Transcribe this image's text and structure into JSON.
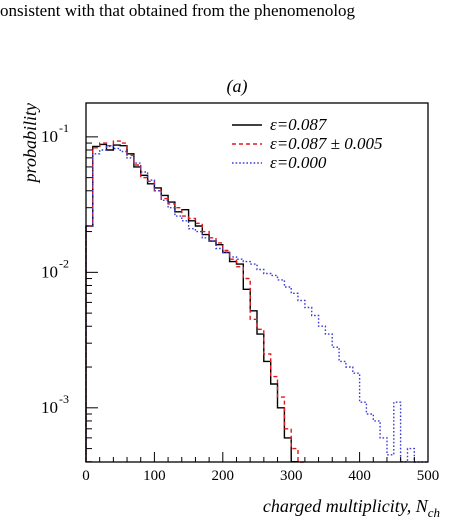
{
  "header_text": "onsistent with that obtained from the phenomenolog",
  "chart_data": {
    "type": "line",
    "drawstyle": "step",
    "panel_label": "(a)",
    "xlabel": "charged multiplicity, N",
    "xlabel_sub": "ch",
    "ylabel": "probability",
    "xlim": [
      0,
      500
    ],
    "ylim_log10": [
      -3.4,
      -0.75
    ],
    "y_scale": "log",
    "grid": false,
    "legend_position": "top-right",
    "x_ticks": [
      0,
      100,
      200,
      300,
      400,
      500
    ],
    "x_tick_labels": [
      "0",
      "100",
      "200",
      "300",
      "400",
      "500"
    ],
    "y_ticks": [
      {
        "value": 0.1,
        "base": "10",
        "exp": "-1"
      },
      {
        "value": 0.01,
        "base": "10",
        "exp": "-2"
      },
      {
        "value": 0.001,
        "base": "10",
        "exp": "-3"
      }
    ],
    "bin_width": 10,
    "series": [
      {
        "name": "ε=0.087",
        "color": "#000000",
        "dash": "solid",
        "x": [
          0,
          10,
          20,
          30,
          40,
          50,
          60,
          70,
          80,
          90,
          100,
          110,
          120,
          130,
          140,
          150,
          160,
          170,
          180,
          190,
          200,
          210,
          220,
          230,
          240,
          250,
          260,
          270,
          280,
          290,
          300
        ],
        "y": [
          0.022,
          0.085,
          0.088,
          0.08,
          0.087,
          0.086,
          0.075,
          0.06,
          0.052,
          0.045,
          0.042,
          0.037,
          0.033,
          0.028,
          0.029,
          0.024,
          0.022,
          0.019,
          0.017,
          0.016,
          0.014,
          0.012,
          0.0115,
          0.0075,
          0.0052,
          0.0035,
          0.0022,
          0.0015,
          0.001,
          0.0006,
          0.0004
        ]
      },
      {
        "name": "ε=0.087 ± 0.005",
        "color": "#e0191c",
        "dash": "dashed",
        "x": [
          0,
          10,
          20,
          30,
          40,
          50,
          60,
          70,
          80,
          90,
          100,
          110,
          120,
          130,
          140,
          150,
          160,
          170,
          180,
          190,
          200,
          210,
          220,
          230,
          240,
          250,
          260,
          270,
          280,
          290,
          300,
          310
        ],
        "y": [
          0.022,
          0.083,
          0.09,
          0.086,
          0.093,
          0.09,
          0.073,
          0.062,
          0.05,
          0.047,
          0.04,
          0.035,
          0.032,
          0.03,
          0.026,
          0.025,
          0.023,
          0.02,
          0.018,
          0.0165,
          0.0145,
          0.0125,
          0.011,
          0.009,
          0.0045,
          0.0038,
          0.0025,
          0.0017,
          0.0012,
          0.0007,
          0.0005,
          0.0003
        ]
      },
      {
        "name": "ε=0.000",
        "color": "#3b3bd9",
        "dash": "dotted",
        "x": [
          0,
          10,
          20,
          30,
          40,
          50,
          60,
          70,
          80,
          90,
          100,
          110,
          120,
          130,
          140,
          150,
          160,
          170,
          180,
          190,
          200,
          210,
          220,
          230,
          240,
          250,
          260,
          270,
          280,
          290,
          300,
          310,
          320,
          330,
          340,
          350,
          360,
          370,
          380,
          390,
          400,
          410,
          420,
          430,
          440,
          450,
          460,
          470,
          480,
          490
        ],
        "y": [
          0.022,
          0.075,
          0.08,
          0.085,
          0.082,
          0.078,
          0.07,
          0.064,
          0.055,
          0.048,
          0.04,
          0.034,
          0.03,
          0.026,
          0.024,
          0.021,
          0.02,
          0.018,
          0.017,
          0.015,
          0.014,
          0.013,
          0.0125,
          0.012,
          0.0115,
          0.0105,
          0.0098,
          0.0095,
          0.0088,
          0.0078,
          0.007,
          0.0062,
          0.0055,
          0.0048,
          0.004,
          0.0035,
          0.0028,
          0.0022,
          0.002,
          0.0018,
          0.0011,
          0.0009,
          0.0008,
          0.0006,
          0.00045,
          0.0011,
          0.0004,
          0.0005,
          0.00035,
          0.0003
        ]
      }
    ]
  }
}
